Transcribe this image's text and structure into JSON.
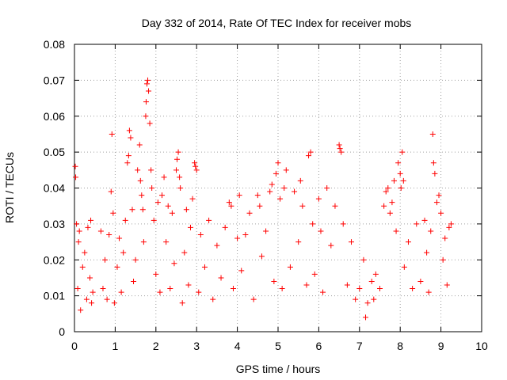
{
  "chart_data": {
    "type": "scatter",
    "title": "Day 332 of 2014, Rate Of TEC Index for receiver mobs",
    "xlabel": "GPS time / hours",
    "ylabel": "ROTI / TECUs",
    "xlim": [
      0,
      10
    ],
    "ylim": [
      0,
      0.08
    ],
    "x_ticks": [
      0,
      1,
      2,
      3,
      4,
      5,
      6,
      7,
      8,
      9,
      10
    ],
    "x_tick_labels": [
      "0",
      "1",
      "2",
      "3",
      "4",
      "5",
      "6",
      "7",
      "8",
      "9",
      "10"
    ],
    "y_ticks": [
      0,
      0.01,
      0.02,
      0.03,
      0.04,
      0.05,
      0.06,
      0.07,
      0.08
    ],
    "y_tick_labels": [
      "0",
      "0.01",
      "0.02",
      "0.03",
      "0.04",
      "0.05",
      "0.06",
      "0.07",
      "0.08"
    ],
    "grid": true,
    "legend": "none",
    "marker": "+",
    "marker_color": "#ff0000",
    "series": [
      {
        "name": "ROTI",
        "points": [
          [
            0.02,
            0.046
          ],
          [
            0.03,
            0.043
          ],
          [
            0.05,
            0.03
          ],
          [
            0.08,
            0.012
          ],
          [
            0.1,
            0.025
          ],
          [
            0.12,
            0.028
          ],
          [
            0.15,
            0.006
          ],
          [
            0.2,
            0.018
          ],
          [
            0.25,
            0.022
          ],
          [
            0.3,
            0.009
          ],
          [
            0.33,
            0.029
          ],
          [
            0.38,
            0.015
          ],
          [
            0.4,
            0.031
          ],
          [
            0.42,
            0.008
          ],
          [
            0.45,
            0.011
          ],
          [
            0.65,
            0.028
          ],
          [
            0.7,
            0.012
          ],
          [
            0.75,
            0.02
          ],
          [
            0.8,
            0.009
          ],
          [
            0.85,
            0.027
          ],
          [
            0.9,
            0.039
          ],
          [
            0.92,
            0.055
          ],
          [
            0.95,
            0.033
          ],
          [
            0.98,
            0.008
          ],
          [
            1.05,
            0.018
          ],
          [
            1.1,
            0.026
          ],
          [
            1.15,
            0.011
          ],
          [
            1.2,
            0.022
          ],
          [
            1.25,
            0.031
          ],
          [
            1.3,
            0.047
          ],
          [
            1.33,
            0.049
          ],
          [
            1.35,
            0.056
          ],
          [
            1.38,
            0.054
          ],
          [
            1.42,
            0.034
          ],
          [
            1.45,
            0.014
          ],
          [
            1.5,
            0.02
          ],
          [
            1.55,
            0.045
          ],
          [
            1.6,
            0.052
          ],
          [
            1.62,
            0.042
          ],
          [
            1.65,
            0.038
          ],
          [
            1.68,
            0.034
          ],
          [
            1.7,
            0.025
          ],
          [
            1.75,
            0.06
          ],
          [
            1.76,
            0.064
          ],
          [
            1.78,
            0.069
          ],
          [
            1.8,
            0.07
          ],
          [
            1.82,
            0.067
          ],
          [
            1.85,
            0.058
          ],
          [
            1.88,
            0.045
          ],
          [
            1.9,
            0.04
          ],
          [
            1.95,
            0.031
          ],
          [
            2.0,
            0.016
          ],
          [
            2.05,
            0.036
          ],
          [
            2.1,
            0.011
          ],
          [
            2.15,
            0.038
          ],
          [
            2.2,
            0.043
          ],
          [
            2.25,
            0.025
          ],
          [
            2.3,
            0.035
          ],
          [
            2.35,
            0.012
          ],
          [
            2.4,
            0.033
          ],
          [
            2.45,
            0.019
          ],
          [
            2.5,
            0.045
          ],
          [
            2.52,
            0.048
          ],
          [
            2.55,
            0.05
          ],
          [
            2.58,
            0.043
          ],
          [
            2.6,
            0.04
          ],
          [
            2.65,
            0.008
          ],
          [
            2.7,
            0.022
          ],
          [
            2.75,
            0.034
          ],
          [
            2.8,
            0.013
          ],
          [
            2.85,
            0.029
          ],
          [
            2.9,
            0.037
          ],
          [
            2.95,
            0.047
          ],
          [
            2.97,
            0.046
          ],
          [
            3.0,
            0.045
          ],
          [
            3.05,
            0.011
          ],
          [
            3.1,
            0.027
          ],
          [
            3.2,
            0.018
          ],
          [
            3.3,
            0.031
          ],
          [
            3.4,
            0.009
          ],
          [
            3.5,
            0.024
          ],
          [
            3.6,
            0.015
          ],
          [
            3.7,
            0.029
          ],
          [
            3.8,
            0.036
          ],
          [
            3.85,
            0.035
          ],
          [
            3.9,
            0.012
          ],
          [
            4.0,
            0.026
          ],
          [
            4.05,
            0.038
          ],
          [
            4.1,
            0.017
          ],
          [
            4.2,
            0.027
          ],
          [
            4.3,
            0.033
          ],
          [
            4.4,
            0.009
          ],
          [
            4.5,
            0.038
          ],
          [
            4.55,
            0.035
          ],
          [
            4.6,
            0.021
          ],
          [
            4.7,
            0.028
          ],
          [
            4.8,
            0.039
          ],
          [
            4.85,
            0.041
          ],
          [
            4.9,
            0.014
          ],
          [
            4.95,
            0.044
          ],
          [
            5.0,
            0.047
          ],
          [
            5.05,
            0.037
          ],
          [
            5.1,
            0.012
          ],
          [
            5.15,
            0.04
          ],
          [
            5.2,
            0.045
          ],
          [
            5.3,
            0.018
          ],
          [
            5.4,
            0.039
          ],
          [
            5.5,
            0.025
          ],
          [
            5.55,
            0.042
          ],
          [
            5.6,
            0.035
          ],
          [
            5.7,
            0.013
          ],
          [
            5.75,
            0.049
          ],
          [
            5.8,
            0.05
          ],
          [
            5.85,
            0.03
          ],
          [
            5.9,
            0.016
          ],
          [
            6.0,
            0.037
          ],
          [
            6.05,
            0.028
          ],
          [
            6.1,
            0.011
          ],
          [
            6.2,
            0.04
          ],
          [
            6.3,
            0.024
          ],
          [
            6.4,
            0.035
          ],
          [
            6.5,
            0.052
          ],
          [
            6.52,
            0.051
          ],
          [
            6.55,
            0.05
          ],
          [
            6.6,
            0.03
          ],
          [
            6.7,
            0.013
          ],
          [
            6.8,
            0.025
          ],
          [
            6.9,
            0.009
          ],
          [
            7.0,
            0.012
          ],
          [
            7.1,
            0.02
          ],
          [
            7.15,
            0.004
          ],
          [
            7.2,
            0.008
          ],
          [
            7.3,
            0.014
          ],
          [
            7.35,
            0.009
          ],
          [
            7.4,
            0.016
          ],
          [
            7.5,
            0.012
          ],
          [
            7.6,
            0.035
          ],
          [
            7.65,
            0.039
          ],
          [
            7.7,
            0.04
          ],
          [
            7.75,
            0.033
          ],
          [
            7.8,
            0.036
          ],
          [
            7.85,
            0.042
          ],
          [
            7.9,
            0.028
          ],
          [
            7.95,
            0.047
          ],
          [
            8.0,
            0.044
          ],
          [
            8.02,
            0.04
          ],
          [
            8.05,
            0.05
          ],
          [
            8.08,
            0.042
          ],
          [
            8.1,
            0.018
          ],
          [
            8.2,
            0.025
          ],
          [
            8.3,
            0.012
          ],
          [
            8.4,
            0.03
          ],
          [
            8.5,
            0.014
          ],
          [
            8.6,
            0.031
          ],
          [
            8.65,
            0.022
          ],
          [
            8.7,
            0.011
          ],
          [
            8.75,
            0.028
          ],
          [
            8.8,
            0.055
          ],
          [
            8.82,
            0.047
          ],
          [
            8.85,
            0.044
          ],
          [
            8.9,
            0.036
          ],
          [
            8.95,
            0.038
          ],
          [
            9.0,
            0.033
          ],
          [
            9.05,
            0.02
          ],
          [
            9.1,
            0.026
          ],
          [
            9.15,
            0.013
          ],
          [
            9.2,
            0.029
          ],
          [
            9.25,
            0.03
          ]
        ]
      }
    ]
  }
}
